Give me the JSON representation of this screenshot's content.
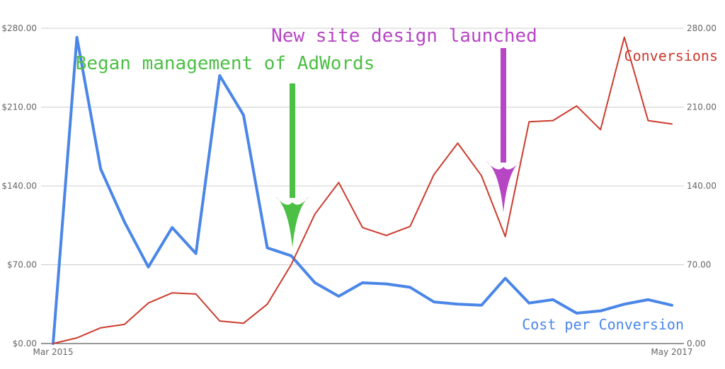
{
  "chart_data": {
    "type": "line",
    "x": [
      "Mar 2015",
      "",
      "",
      "",
      "",
      "",
      "",
      "",
      "",
      "",
      "",
      "",
      "",
      "",
      "",
      "",
      "",
      "",
      "",
      "",
      "",
      "",
      "",
      "",
      "",
      "",
      "May 2017"
    ],
    "x_labels_shown": [
      "Mar 2015",
      "May 2017"
    ],
    "y_left": {
      "ticks": [
        "$0.00",
        "$70.00",
        "$140.00",
        "$210.00",
        "$280.00"
      ],
      "range": [
        0,
        280
      ]
    },
    "y_right": {
      "ticks": [
        "0.00",
        "70.00",
        "140.00",
        "210.00",
        "280.00"
      ],
      "range": [
        0,
        280
      ]
    },
    "grid": true,
    "series": [
      {
        "name": "Cost per Conversion",
        "axis": "left",
        "color": "#4a86e8",
        "values": [
          0,
          272,
          155,
          108,
          68,
          103,
          80,
          238,
          203,
          85,
          78,
          54,
          42,
          54,
          53,
          50,
          37,
          35,
          34,
          58,
          36,
          39,
          27,
          29,
          35,
          39,
          34
        ]
      },
      {
        "name": "Conversions",
        "axis": "right",
        "color": "#cc3b2e",
        "values": [
          0,
          5,
          14,
          17,
          36,
          45,
          44,
          20,
          18,
          35,
          70,
          115,
          143,
          103,
          96,
          104,
          150,
          178,
          149,
          95,
          197,
          198,
          211,
          190,
          272,
          198,
          195
        ]
      }
    ],
    "annotations": [
      {
        "label": "Began management of AdWords",
        "color": "#4cbf45",
        "at_index": 10
      },
      {
        "label": "New site design launched",
        "color": "#b646c4",
        "at_index": 19
      }
    ]
  }
}
